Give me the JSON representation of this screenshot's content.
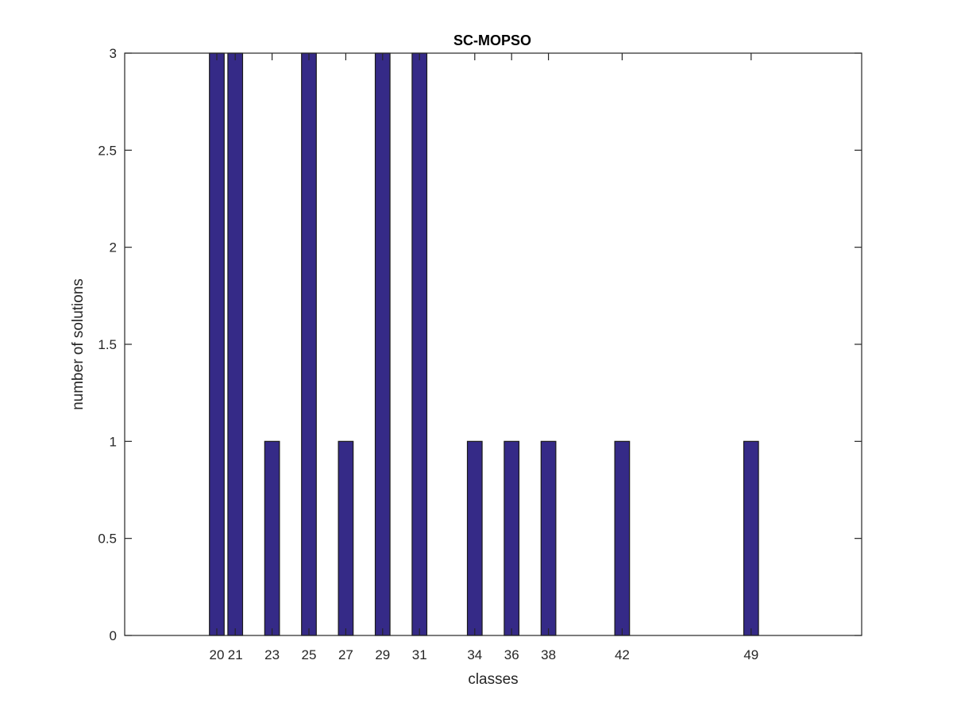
{
  "chart_data": {
    "type": "bar",
    "title": "SC-MOPSO",
    "xlabel": "classes",
    "ylabel": "number of solutions",
    "x": [
      20,
      21,
      23,
      25,
      27,
      29,
      31,
      34,
      36,
      38,
      42,
      49
    ],
    "values": [
      3,
      3,
      1,
      3,
      1,
      3,
      3,
      1,
      1,
      1,
      1,
      1
    ],
    "xtick_labels": [
      "20",
      "21",
      "23",
      "25",
      "27",
      "29",
      "31",
      "34",
      "36",
      "38",
      "42",
      "49"
    ],
    "yticks": [
      0,
      0.5,
      1,
      1.5,
      2,
      2.5,
      3
    ],
    "ytick_labels": [
      "0",
      "0.5",
      "1",
      "1.5",
      "2",
      "2.5",
      "3"
    ],
    "xlim": [
      15,
      55
    ],
    "ylim": [
      0,
      3
    ],
    "bar_color": "#352a87",
    "grid": false,
    "legend": "none"
  }
}
